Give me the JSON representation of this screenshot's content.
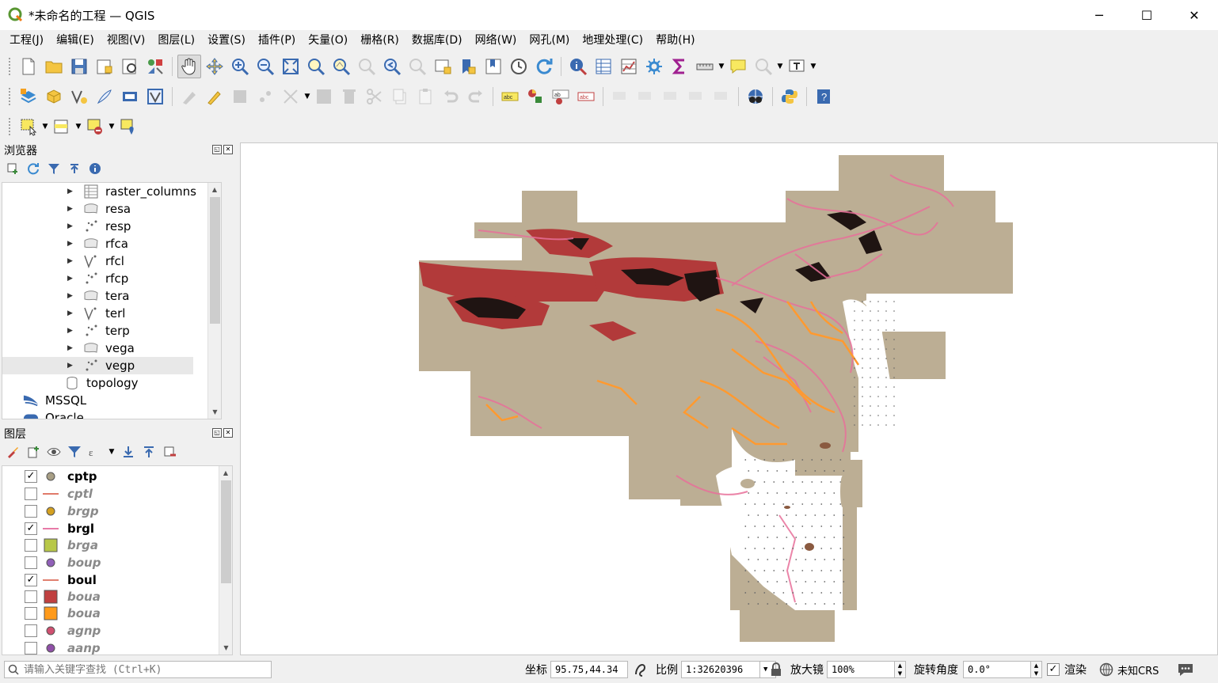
{
  "window": {
    "title": "*未命名的工程 — QGIS",
    "minimize": "─",
    "maximize": "☐",
    "close": "✕"
  },
  "menu": [
    "工程(J)",
    "编辑(E)",
    "视图(V)",
    "图层(L)",
    "设置(S)",
    "插件(P)",
    "矢量(O)",
    "栅格(R)",
    "数据库(D)",
    "网络(W)",
    "网孔(M)",
    "地理处理(C)",
    "帮助(H)"
  ],
  "browser": {
    "title": "浏览器",
    "items": [
      {
        "label": "raster_columns",
        "icon": "table-icon"
      },
      {
        "label": "resa",
        "icon": "polygon-icon"
      },
      {
        "label": "resp",
        "icon": "point-icon"
      },
      {
        "label": "rfca",
        "icon": "polygon-icon"
      },
      {
        "label": "rfcl",
        "icon": "line-icon"
      },
      {
        "label": "rfcp",
        "icon": "point-icon"
      },
      {
        "label": "tera",
        "icon": "polygon-icon"
      },
      {
        "label": "terl",
        "icon": "line-icon"
      },
      {
        "label": "terp",
        "icon": "point-icon"
      },
      {
        "label": "vega",
        "icon": "polygon-icon"
      },
      {
        "label": "vegp",
        "icon": "point-icon"
      },
      {
        "label": "topology",
        "icon": "database-icon"
      },
      {
        "label": "MSSQL",
        "icon": "mssql-icon"
      },
      {
        "label": "Oracle",
        "icon": "oracle-icon"
      }
    ]
  },
  "layers": {
    "title": "图层",
    "items": [
      {
        "name": "cptp",
        "checked": true,
        "symbol": "point",
        "color": "#a89f86"
      },
      {
        "name": "cptl",
        "checked": false,
        "symbol": "line",
        "color": "#e07a6a"
      },
      {
        "name": "brgp",
        "checked": false,
        "symbol": "point",
        "color": "#d4a020"
      },
      {
        "name": "brgl",
        "checked": true,
        "symbol": "line",
        "color": "#e87aa8"
      },
      {
        "name": "brga",
        "checked": false,
        "symbol": "fill",
        "color": "#b8c848"
      },
      {
        "name": "boup",
        "checked": false,
        "symbol": "point",
        "color": "#9060b8"
      },
      {
        "name": "boul",
        "checked": true,
        "symbol": "line",
        "color": "#e08070"
      },
      {
        "name": "boua",
        "checked": false,
        "symbol": "fill",
        "color": "#c04040"
      },
      {
        "name": "boua",
        "checked": false,
        "symbol": "fill",
        "color": "#ff9a1a"
      },
      {
        "name": "agnp",
        "checked": false,
        "symbol": "point",
        "color": "#d05070"
      },
      {
        "name": "aanp",
        "checked": false,
        "symbol": "point",
        "color": "#9050a8"
      }
    ]
  },
  "status": {
    "search_placeholder": "请输入关键字查找 (Ctrl+K)",
    "coord_label": "坐标",
    "coord_value": "95.75,44.34",
    "scale_label": "比例",
    "scale_value": "1:32620396",
    "magnifier_label": "放大镜",
    "magnifier_value": "100%",
    "rotation_label": "旋转角度",
    "rotation_value": "0.0°",
    "render_label": "渲染",
    "crs_label": "未知CRS"
  },
  "colors": {
    "map_base": "#bcae94",
    "map_dark": "#b23a3a",
    "map_pink": "#e8709a",
    "map_orange": "#ff9a30"
  }
}
